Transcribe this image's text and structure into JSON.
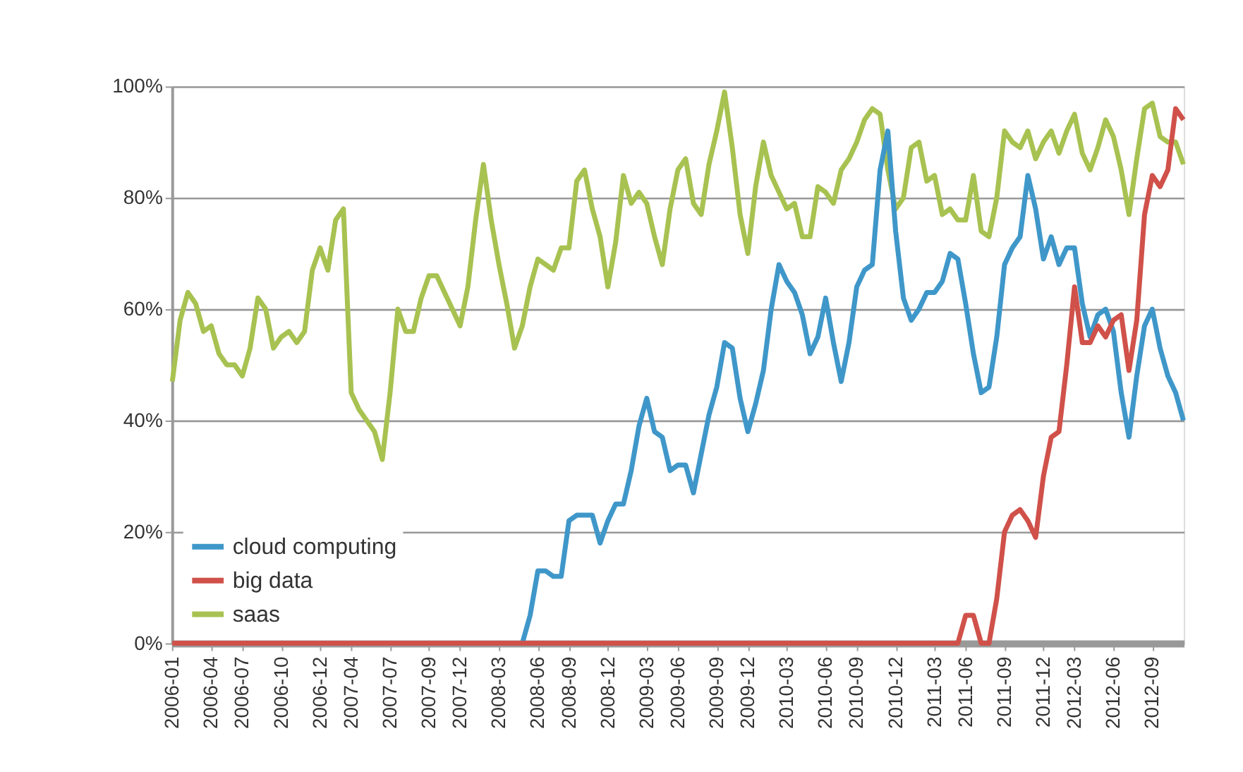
{
  "chart_data": {
    "type": "line",
    "categories": [
      "2006-01",
      null,
      null,
      null,
      null,
      "2006-04",
      null,
      null,
      null,
      "2006-07",
      null,
      null,
      null,
      null,
      "2006-10",
      null,
      null,
      null,
      null,
      "2006-12",
      null,
      null,
      null,
      "2007-04",
      null,
      null,
      null,
      null,
      "2007-07",
      null,
      null,
      null,
      null,
      "2007-09",
      null,
      null,
      null,
      "2007-12",
      null,
      null,
      null,
      null,
      "2008-03",
      null,
      null,
      null,
      null,
      "2008-06",
      null,
      null,
      null,
      "2008-09",
      null,
      null,
      null,
      null,
      "2008-12",
      null,
      null,
      null,
      null,
      "2009-03",
      null,
      null,
      null,
      "2009-06",
      null,
      null,
      null,
      null,
      "2009-09",
      null,
      null,
      null,
      "2009-12",
      null,
      null,
      null,
      null,
      "2010-03",
      null,
      null,
      null,
      null,
      "2010-06",
      null,
      null,
      null,
      "2010-09",
      null,
      null,
      null,
      null,
      "2010-12",
      null,
      null,
      null,
      null,
      "2011-03",
      null,
      null,
      null,
      "2011-06",
      null,
      null,
      null,
      null,
      "2011-09",
      null,
      null,
      null,
      null,
      "2011-12",
      null,
      null,
      null,
      "2012-03",
      null,
      null,
      null,
      null,
      "2012-06",
      null,
      null,
      null,
      null,
      "2012-09",
      null,
      null,
      null,
      null
    ],
    "series": [
      {
        "name": "cloud computing",
        "color": "#3f97c9",
        "values": [
          null,
          null,
          null,
          null,
          null,
          null,
          null,
          null,
          null,
          null,
          null,
          null,
          null,
          null,
          null,
          null,
          null,
          null,
          null,
          null,
          null,
          null,
          null,
          null,
          null,
          null,
          null,
          null,
          null,
          null,
          null,
          null,
          null,
          null,
          null,
          null,
          null,
          null,
          null,
          null,
          null,
          null,
          null,
          null,
          null,
          0,
          5,
          13,
          13,
          12,
          12,
          22,
          23,
          23,
          23,
          18,
          22,
          25,
          25,
          31,
          39,
          44,
          38,
          37,
          31,
          32,
          32,
          27,
          34,
          41,
          46,
          54,
          53,
          44,
          38,
          43,
          49,
          60,
          68,
          65,
          63,
          59,
          52,
          55,
          62,
          54,
          47,
          54,
          64,
          67,
          68,
          85,
          92,
          74,
          62,
          58,
          60,
          63,
          63,
          65,
          70,
          69,
          61,
          52,
          45,
          46,
          55,
          68,
          71,
          73,
          84,
          78,
          69,
          73,
          68,
          71,
          71,
          61,
          55,
          59,
          60,
          56,
          45,
          37,
          48,
          57,
          60,
          53,
          48,
          45,
          40
        ]
      },
      {
        "name": "big data",
        "color": "#d0514a",
        "values": [
          0,
          0,
          0,
          0,
          0,
          0,
          0,
          0,
          0,
          0,
          0,
          0,
          0,
          0,
          0,
          0,
          0,
          0,
          0,
          0,
          0,
          0,
          0,
          0,
          0,
          0,
          0,
          0,
          0,
          0,
          0,
          0,
          0,
          0,
          0,
          0,
          0,
          0,
          0,
          0,
          0,
          0,
          0,
          0,
          0,
          0,
          0,
          0,
          0,
          0,
          0,
          0,
          0,
          0,
          0,
          0,
          0,
          0,
          0,
          0,
          0,
          0,
          0,
          0,
          0,
          0,
          0,
          0,
          0,
          0,
          0,
          0,
          0,
          0,
          0,
          0,
          0,
          0,
          0,
          0,
          0,
          0,
          0,
          0,
          0,
          0,
          0,
          0,
          0,
          0,
          0,
          0,
          0,
          0,
          0,
          0,
          0,
          0,
          0,
          0,
          0,
          0,
          5,
          5,
          0,
          0,
          8,
          20,
          23,
          24,
          22,
          19,
          30,
          37,
          38,
          50,
          64,
          54,
          54,
          57,
          55,
          58,
          59,
          49,
          58,
          77,
          84,
          82,
          85,
          96,
          94
        ]
      },
      {
        "name": "saas",
        "color": "#a8c251",
        "values": [
          47,
          58,
          63,
          61,
          56,
          57,
          52,
          50,
          50,
          48,
          53,
          62,
          60,
          53,
          55,
          56,
          54,
          56,
          67,
          71,
          67,
          76,
          78,
          45,
          42,
          40,
          38,
          33,
          45,
          60,
          56,
          56,
          62,
          66,
          66,
          63,
          60,
          57,
          64,
          76,
          86,
          76,
          68,
          61,
          53,
          57,
          64,
          69,
          68,
          67,
          71,
          71,
          83,
          85,
          78,
          73,
          64,
          72,
          84,
          79,
          81,
          79,
          73,
          68,
          78,
          85,
          87,
          79,
          77,
          86,
          92,
          99,
          89,
          77,
          70,
          82,
          90,
          84,
          81,
          78,
          79,
          73,
          73,
          82,
          81,
          79,
          85,
          87,
          90,
          94,
          96,
          95,
          85,
          78,
          80,
          89,
          90,
          83,
          84,
          77,
          78,
          76,
          76,
          84,
          74,
          73,
          80,
          92,
          90,
          89,
          92,
          87,
          90,
          92,
          88,
          92,
          95,
          88,
          85,
          89,
          94,
          91,
          85,
          77,
          87,
          96,
          97,
          91,
          90,
          90,
          86
        ]
      }
    ],
    "ylim": [
      0,
      100
    ],
    "yticks": [
      {
        "value": 0,
        "label": "0%"
      },
      {
        "value": 20,
        "label": "20%"
      },
      {
        "value": 40,
        "label": "40%"
      },
      {
        "value": 60,
        "label": "60%"
      },
      {
        "value": 80,
        "label": "80%"
      },
      {
        "value": 100,
        "label": "100%"
      }
    ],
    "grid": "y",
    "legend": "bottom left"
  }
}
